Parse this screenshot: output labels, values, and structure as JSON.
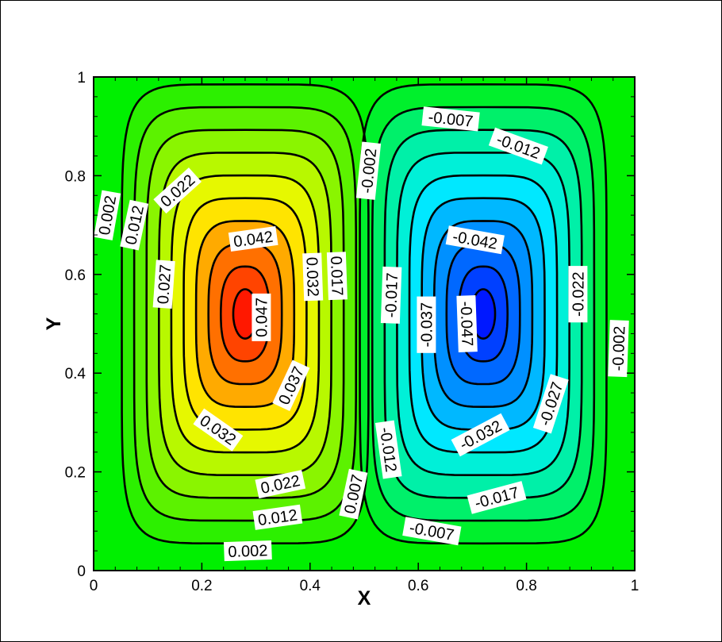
{
  "chart_data": {
    "type": "contour",
    "xlabel": "X",
    "ylabel": "Y",
    "xlim": [
      0,
      1
    ],
    "ylim": [
      0,
      1
    ],
    "x_ticks": [
      "0",
      "0.2",
      "0.4",
      "0.6",
      "0.8",
      "1"
    ],
    "y_ticks": [
      "0",
      "0.2",
      "0.4",
      "0.6",
      "0.8",
      "1"
    ],
    "grid": false,
    "legend": "none",
    "background_color": "#00f000",
    "vortices": [
      {
        "name": "left",
        "center": [
          0.28,
          0.52
        ],
        "peak": 0.047,
        "sign": "positive"
      },
      {
        "name": "right",
        "center": [
          0.72,
          0.52
        ],
        "peak": -0.047,
        "sign": "negative"
      }
    ],
    "levels": [
      0.002,
      0.007,
      0.012,
      0.017,
      0.022,
      0.027,
      0.032,
      0.037,
      0.042,
      0.047
    ],
    "level_colors_positive": [
      "#2cf000",
      "#5cf200",
      "#8af500",
      "#b8f800",
      "#e6f800",
      "#ffe400",
      "#ffaa00",
      "#ff7000",
      "#ff4400",
      "#ff1800"
    ],
    "level_colors_negative": [
      "#00f02c",
      "#00f06a",
      "#00f0a8",
      "#00f0d8",
      "#00e8ff",
      "#00b8ff",
      "#0090ff",
      "#0068ff",
      "#0040ff",
      "#0018ff"
    ],
    "contour_labels": [
      {
        "text": "0.002",
        "x": 0.025,
        "y": 0.72,
        "angle": -80
      },
      {
        "text": "0.012",
        "x": 0.075,
        "y": 0.7,
        "angle": -78
      },
      {
        "text": "0.022",
        "x": 0.155,
        "y": 0.77,
        "angle": -42
      },
      {
        "text": "0.027",
        "x": 0.13,
        "y": 0.58,
        "angle": -86
      },
      {
        "text": "0.042",
        "x": 0.295,
        "y": 0.672,
        "angle": -8
      },
      {
        "text": "0.047",
        "x": 0.31,
        "y": 0.513,
        "angle": -90
      },
      {
        "text": "0.032",
        "x": 0.405,
        "y": 0.595,
        "angle": 88
      },
      {
        "text": "0.017",
        "x": 0.45,
        "y": 0.597,
        "angle": 88
      },
      {
        "text": "0.037",
        "x": 0.365,
        "y": 0.375,
        "angle": -65
      },
      {
        "text": "0.032",
        "x": 0.23,
        "y": 0.285,
        "angle": 35
      },
      {
        "text": "0.022",
        "x": 0.345,
        "y": 0.175,
        "angle": -12
      },
      {
        "text": "0.012",
        "x": 0.34,
        "y": 0.108,
        "angle": -8
      },
      {
        "text": "0.007",
        "x": 0.48,
        "y": 0.155,
        "angle": -78
      },
      {
        "text": "0.002",
        "x": 0.285,
        "y": 0.04,
        "angle": -2
      },
      {
        "text": "-0.002",
        "x": 0.508,
        "y": 0.81,
        "angle": -84
      },
      {
        "text": "-0.007",
        "x": 0.66,
        "y": 0.915,
        "angle": 6
      },
      {
        "text": "-0.012",
        "x": 0.785,
        "y": 0.86,
        "angle": 20
      },
      {
        "text": "-0.042",
        "x": 0.705,
        "y": 0.67,
        "angle": 10
      },
      {
        "text": "-0.017",
        "x": 0.55,
        "y": 0.558,
        "angle": -88
      },
      {
        "text": "-0.037",
        "x": 0.615,
        "y": 0.498,
        "angle": -90
      },
      {
        "text": "-0.047",
        "x": 0.69,
        "y": 0.5,
        "angle": 88
      },
      {
        "text": "-0.022",
        "x": 0.895,
        "y": 0.56,
        "angle": -90
      },
      {
        "text": "-0.002",
        "x": 0.97,
        "y": 0.45,
        "angle": -88
      },
      {
        "text": "-0.027",
        "x": 0.845,
        "y": 0.338,
        "angle": -72
      },
      {
        "text": "-0.032",
        "x": 0.715,
        "y": 0.275,
        "angle": -28
      },
      {
        "text": "-0.012",
        "x": 0.545,
        "y": 0.245,
        "angle": 82
      },
      {
        "text": "-0.017",
        "x": 0.745,
        "y": 0.148,
        "angle": -15
      },
      {
        "text": "-0.007",
        "x": 0.625,
        "y": 0.08,
        "angle": 10
      }
    ]
  }
}
